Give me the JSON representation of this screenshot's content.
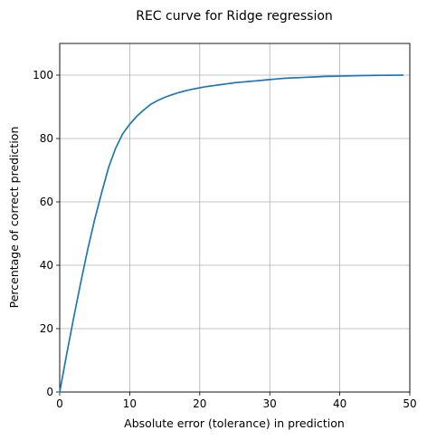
{
  "chart_data": {
    "type": "line",
    "title": "REC curve for Ridge regression",
    "xlabel": "Absolute error (tolerance) in prediction",
    "ylabel": "Percentage of correct prediction",
    "xlim": [
      0,
      50
    ],
    "ylim": [
      0,
      110
    ],
    "xticks": [
      0,
      10,
      20,
      30,
      40,
      50
    ],
    "yticks": [
      0,
      20,
      40,
      60,
      80,
      100
    ],
    "grid": true,
    "series_color": "#1f77b4",
    "series": [
      {
        "x": [
          0,
          1,
          2,
          3,
          4,
          5,
          6,
          7,
          8,
          9,
          10,
          11,
          12,
          13,
          14,
          15,
          16,
          17,
          18,
          19,
          20,
          21,
          22,
          23,
          24,
          25,
          26,
          27,
          28,
          29,
          30,
          31,
          32,
          33,
          34,
          35,
          36,
          37,
          38,
          39,
          40,
          41,
          42,
          43,
          44,
          45,
          46,
          47,
          48,
          49
        ],
        "values": [
          0,
          12,
          23.5,
          34.5,
          45,
          54.5,
          63,
          71,
          77,
          81.5,
          84.5,
          87,
          89,
          90.8,
          92,
          93,
          93.8,
          94.5,
          95.1,
          95.6,
          96,
          96.4,
          96.7,
          97,
          97.3,
          97.6,
          97.8,
          98,
          98.2,
          98.4,
          98.6,
          98.8,
          99,
          99.1,
          99.2,
          99.3,
          99.4,
          99.5,
          99.6,
          99.65,
          99.7,
          99.75,
          99.8,
          99.85,
          99.9,
          99.92,
          99.95,
          99.97,
          99.98,
          100
        ]
      }
    ]
  }
}
